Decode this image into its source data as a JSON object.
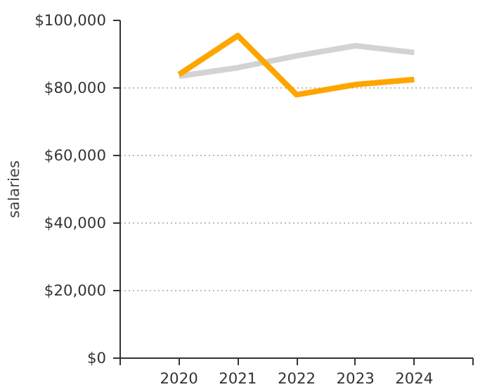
{
  "chart_data": {
    "type": "line",
    "ylabel": "salaries",
    "x": [
      2020,
      2021,
      2022,
      2023,
      2024
    ],
    "series": [
      {
        "color": "#d3d3d3",
        "values": [
          83500,
          86000,
          89500,
          92500,
          90500
        ]
      },
      {
        "color": "#ffa500",
        "values": [
          84000,
          95500,
          78000,
          81000,
          82500
        ]
      }
    ],
    "xlim": [
      2019,
      2025
    ],
    "xticks": [
      {
        "value": 2019,
        "label": null
      },
      2020,
      2021,
      2022,
      2023,
      2024,
      {
        "value": 2025,
        "label": null
      }
    ],
    "ylim": [
      0,
      100000
    ],
    "yticks": [
      {
        "value": 0,
        "label": "$0"
      },
      {
        "value": 20000,
        "label": "$20,000"
      },
      {
        "value": 40000,
        "label": "$40,000"
      },
      {
        "value": 60000,
        "label": "$60,000"
      },
      {
        "value": 80000,
        "label": "$80,000"
      },
      {
        "value": 100000,
        "label": "$100,000"
      }
    ],
    "grid": "y"
  }
}
